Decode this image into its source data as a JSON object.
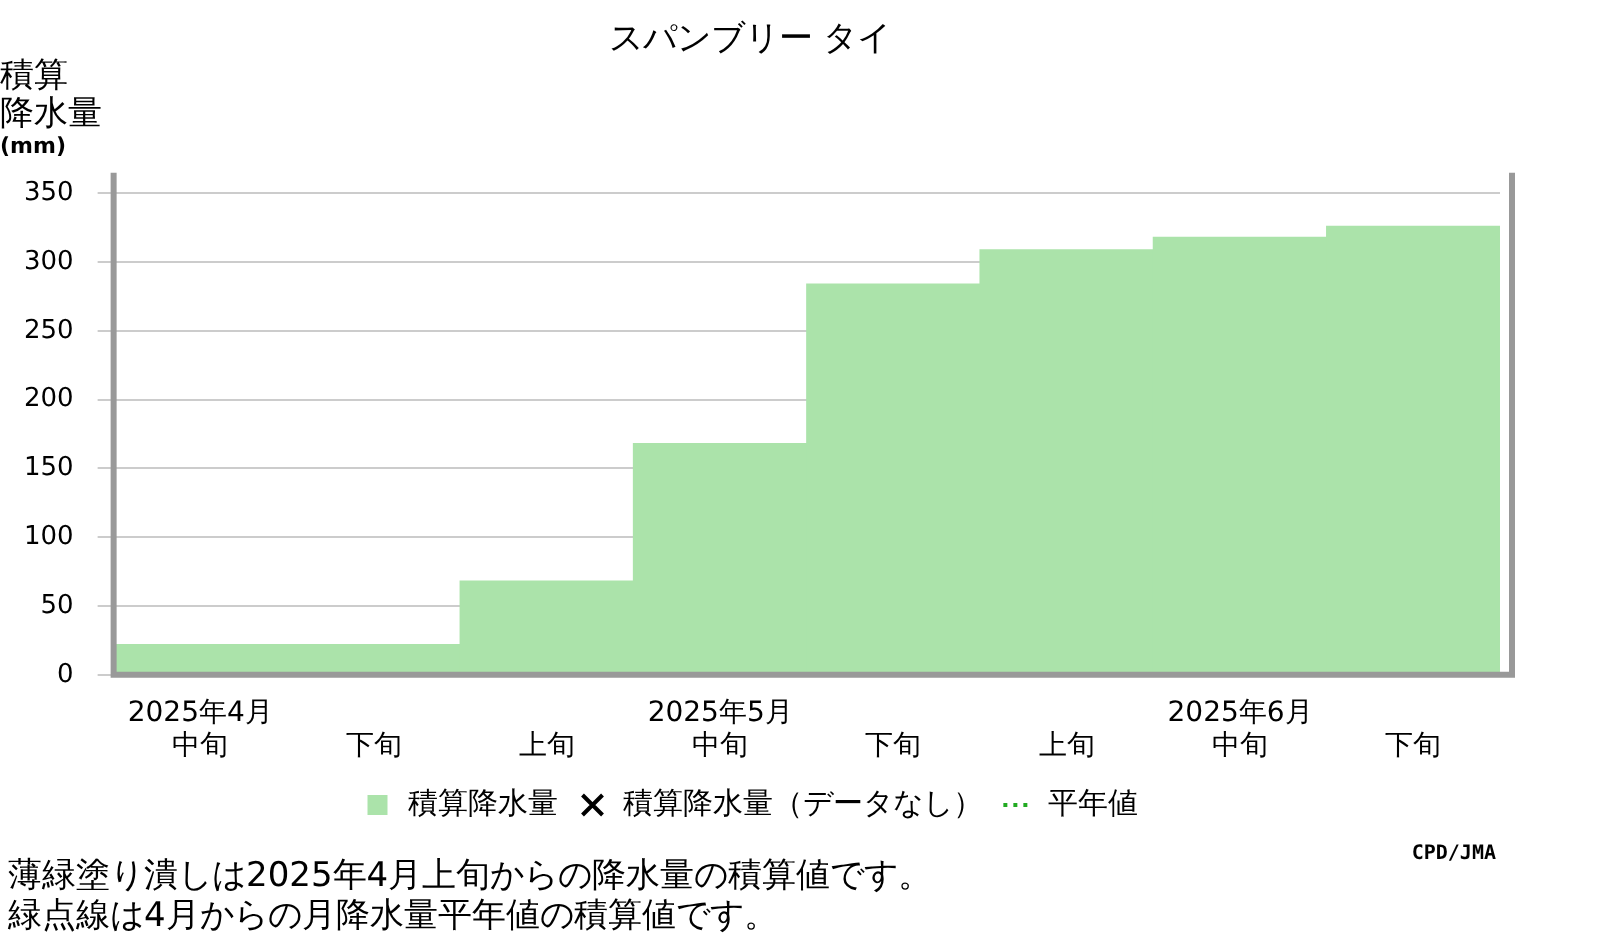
{
  "chart_data": {
    "type": "bar",
    "title": "スパンブリー タイ",
    "ylabel": "積算降水量(mm)",
    "categories": [
      "2025年4月中旬",
      "下旬",
      "上旬",
      "2025年5月中旬",
      "下旬",
      "上旬",
      "2025年6月中旬",
      "下旬"
    ],
    "series": [
      {
        "name": "積算降水量",
        "color": "#abe3aa",
        "values": [
          22,
          22,
          68,
          168,
          284,
          309,
          318,
          326
        ]
      },
      {
        "name": "積算降水量（データなし）",
        "type": "scatter",
        "color": "#000000",
        "marker": "cross",
        "values": [
          null,
          null,
          null,
          null,
          null,
          null,
          null,
          null
        ]
      },
      {
        "name": "平年値",
        "type": "line",
        "color": "#22aa22",
        "line_style": "dotted",
        "values": [
          null,
          null,
          null,
          null,
          null,
          null,
          null,
          null
        ]
      }
    ],
    "ylim": [
      0,
      365
    ],
    "yticks": [
      0,
      50,
      100,
      150,
      200,
      250,
      300,
      350
    ],
    "grid": "y",
    "legend": "bottom",
    "annotations": [
      "薄緑塗り潰しは2025年4月上旬からの降水量の積算値です。",
      "緑点線は4月からの月降水量平年値の積算値です。",
      "CPD/JMA"
    ]
  }
}
